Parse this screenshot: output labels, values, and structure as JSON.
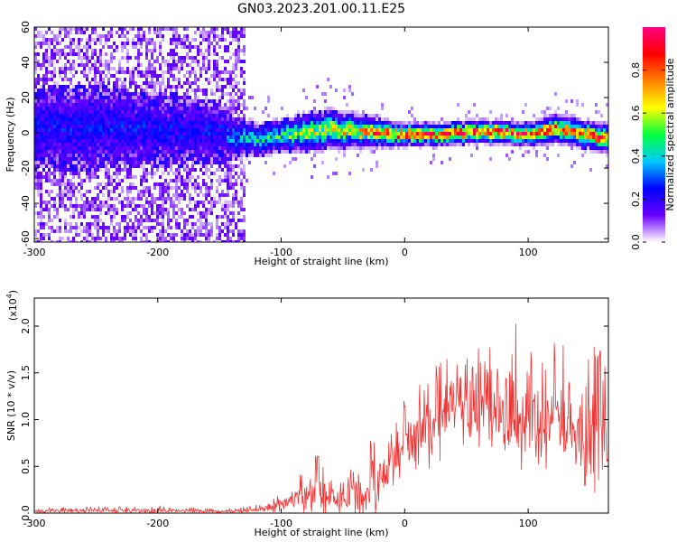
{
  "figure": {
    "title": "GN03.2023.201.00.11.E25"
  },
  "chart_data": [
    {
      "type": "heatmap",
      "title": "",
      "xlabel": "Height of straight line (km)",
      "ylabel": "Frequency (Hz)",
      "xlim": [
        -300,
        165
      ],
      "ylim": [
        -62,
        60
      ],
      "xticks": [
        -300,
        -200,
        -100,
        0,
        100
      ],
      "xtick_labels": [
        "-300",
        "-200",
        "-100",
        "0",
        "100"
      ],
      "yticks": [
        -60,
        -40,
        -20,
        0,
        20,
        40,
        60
      ],
      "ytick_labels": [
        "-60",
        "-40",
        "-20",
        "0",
        "20",
        "40",
        "60"
      ],
      "grid": false,
      "colorbar": {
        "label": "Normalized spectral amplitude",
        "range": [
          0,
          1
        ],
        "ticks": [
          0.0,
          0.2,
          0.4,
          0.6,
          0.8
        ],
        "tick_labels": [
          "0.0",
          "0.2",
          "0.4",
          "0.6",
          "0.8"
        ],
        "colors": [
          "#ffffff",
          "#6a00ff",
          "#0000ff",
          "#00c8ff",
          "#00ff40",
          "#ffff00",
          "#ff8000",
          "#ff0000",
          "#ff0080"
        ]
      },
      "noise_region_x": [
        -300,
        -128
      ],
      "ridge": {
        "x": [
          -300,
          -250,
          -200,
          -150,
          -140,
          -120,
          -100,
          -80,
          -60,
          -40,
          -20,
          0,
          20,
          40,
          60,
          80,
          100,
          120,
          140,
          165
        ],
        "y": [
          3,
          3,
          2,
          0,
          -2,
          -4,
          -2,
          0,
          2,
          1,
          0,
          -1,
          -1,
          0,
          0,
          0,
          -1,
          2,
          0,
          -3
        ],
        "width": [
          16,
          16,
          14,
          12,
          8,
          6,
          6,
          7,
          7,
          6,
          5,
          4,
          4,
          4,
          4,
          4,
          4,
          5,
          5,
          5
        ],
        "peak": [
          0.25,
          0.25,
          0.25,
          0.25,
          0.35,
          0.45,
          0.5,
          0.6,
          0.65,
          0.7,
          0.85,
          0.9,
          0.9,
          0.88,
          0.9,
          0.9,
          0.85,
          0.8,
          0.82,
          0.8
        ]
      }
    },
    {
      "type": "line",
      "title": "",
      "xlabel": "Height of straight line (km)",
      "ylabel": "SNR (10 * v/v)",
      "y_scale_label": "(x10",
      "y_scale_exp": "4",
      "y_scale_close": ")",
      "xlim": [
        -300,
        165
      ],
      "ylim": [
        0,
        2.3
      ],
      "xticks": [
        -300,
        -200,
        -100,
        0,
        100
      ],
      "xtick_labels": [
        "-300",
        "-200",
        "-100",
        "0",
        "100"
      ],
      "yticks": [
        0.0,
        0.5,
        1.0,
        1.5,
        2.0
      ],
      "ytick_labels": [
        "0.0",
        "0.5",
        "1.0",
        "1.5",
        "2.0"
      ],
      "grid": false,
      "series": [
        {
          "name": "",
          "color": "#ee3333",
          "envelope": {
            "x": [
              -300,
              -250,
              -200,
              -150,
              -125,
              -110,
              -100,
              -90,
              -80,
              -70,
              -60,
              -50,
              -40,
              -30,
              -20,
              -10,
              0,
              10,
              20,
              30,
              40,
              50,
              60,
              70,
              80,
              90,
              100,
              110,
              120,
              130,
              140,
              150,
              160,
              165
            ],
            "base": [
              0.02,
              0.03,
              0.03,
              0.02,
              0.03,
              0.06,
              0.1,
              0.15,
              0.2,
              0.25,
              0.18,
              0.15,
              0.2,
              0.25,
              0.4,
              0.55,
              0.7,
              0.85,
              0.95,
              1.05,
              1.1,
              1.1,
              1.15,
              1.15,
              1.1,
              1.05,
              1.05,
              1.0,
              1.0,
              1.0,
              0.95,
              0.9,
              0.85,
              0.85
            ],
            "amp": [
              0.02,
              0.03,
              0.03,
              0.02,
              0.03,
              0.05,
              0.08,
              0.12,
              0.2,
              0.28,
              0.2,
              0.18,
              0.25,
              0.3,
              0.35,
              0.35,
              0.35,
              0.35,
              0.4,
              0.4,
              0.45,
              0.45,
              0.5,
              0.55,
              0.5,
              0.5,
              0.5,
              0.5,
              0.55,
              0.55,
              0.55,
              0.6,
              0.6,
              0.6
            ]
          }
        }
      ]
    }
  ]
}
